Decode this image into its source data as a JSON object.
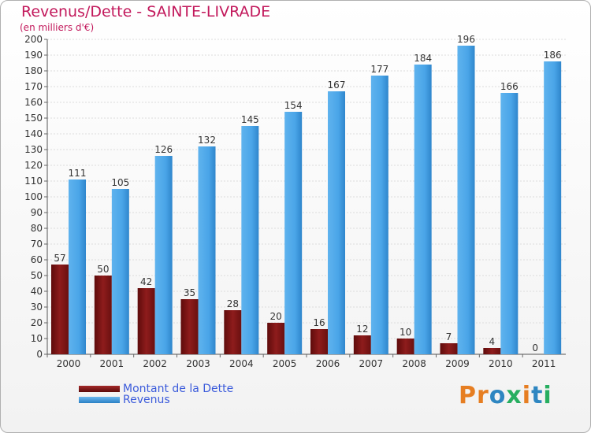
{
  "chart_data": {
    "type": "bar",
    "title": "Revenus/Dette - SAINTE-LIVRADE",
    "subtitle": "(en milliers d'€)",
    "categories": [
      "2000",
      "2001",
      "2002",
      "2003",
      "2004",
      "2005",
      "2006",
      "2007",
      "2008",
      "2009",
      "2010",
      "2011"
    ],
    "series": [
      {
        "name": "Montant de la Dette",
        "color": "#8b1a1a",
        "values": [
          57,
          50,
          42,
          35,
          28,
          20,
          16,
          12,
          10,
          7,
          4,
          0
        ]
      },
      {
        "name": "Revenus",
        "color": "#3a9ee4",
        "values": [
          111,
          105,
          126,
          132,
          145,
          154,
          167,
          177,
          184,
          196,
          166,
          186
        ]
      }
    ],
    "ylim": [
      0,
      200
    ],
    "ytick_step": 10,
    "grid": true,
    "legend": "bottom-left"
  },
  "legend": {
    "debt_label": "Montant de la Dette",
    "revenue_label": "Revenus"
  },
  "logo": {
    "letters": [
      "P",
      "r",
      "o",
      "x",
      "i",
      "t",
      "i"
    ],
    "colors": [
      "#e67e22",
      "#e67e22",
      "#2e86c1",
      "#27ae60",
      "#e67e22",
      "#2e86c1",
      "#27ae60"
    ]
  }
}
